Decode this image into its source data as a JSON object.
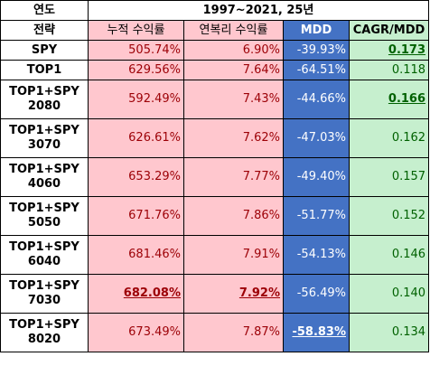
{
  "header": {
    "year_label": "연도",
    "period_label": "1997~2021, 25년",
    "strategy_label": "전략",
    "col_total_return": "누적 수익률",
    "col_annual_return": "연복리 수익률",
    "col_mdd": "MDD",
    "col_ratio": "CAGR/MDD"
  },
  "rows": [
    {
      "line1": "SPY",
      "line2": "",
      "total": "505.74%",
      "annual": "6.90%",
      "mdd": "-39.93%",
      "ratio": "0.173"
    },
    {
      "line1": "TOP1",
      "line2": "",
      "total": "629.56%",
      "annual": "7.64%",
      "mdd": "-64.51%",
      "ratio": "0.118"
    },
    {
      "line1": "TOP1+SPY",
      "line2": "2080",
      "total": "592.49%",
      "annual": "7.43%",
      "mdd": "-44.66%",
      "ratio": "0.166"
    },
    {
      "line1": "TOP1+SPY",
      "line2": "3070",
      "total": "626.61%",
      "annual": "7.62%",
      "mdd": "-47.03%",
      "ratio": "0.162"
    },
    {
      "line1": "TOP1+SPY",
      "line2": "4060",
      "total": "653.29%",
      "annual": "7.77%",
      "mdd": "-49.40%",
      "ratio": "0.157"
    },
    {
      "line1": "TOP1+SPY",
      "line2": "5050",
      "total": "671.76%",
      "annual": "7.86%",
      "mdd": "-51.77%",
      "ratio": "0.152"
    },
    {
      "line1": "TOP1+SPY",
      "line2": "6040",
      "total": "681.46%",
      "annual": "7.91%",
      "mdd": "-54.13%",
      "ratio": "0.146"
    },
    {
      "line1": "TOP1+SPY",
      "line2": "7030",
      "total": "682.08%",
      "annual": "7.92%",
      "mdd": "-56.49%",
      "ratio": "0.140"
    },
    {
      "line1": "TOP1+SPY",
      "line2": "8020",
      "total": "673.49%",
      "annual": "7.87%",
      "mdd": "-58.83%",
      "ratio": "0.134"
    }
  ],
  "colors": {
    "return_bg": "#ffc7ce",
    "return_text": "#9c0006",
    "mdd_bg": "#4472c4",
    "mdd_text": "#ffffff",
    "ratio_bg": "#c6efce",
    "ratio_text": "#006100"
  }
}
